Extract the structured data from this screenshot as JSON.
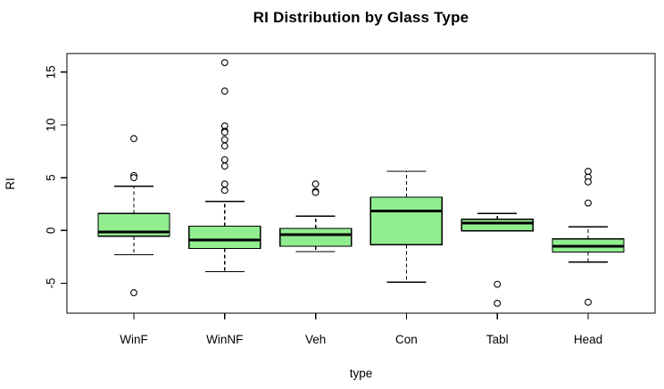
{
  "title": "RI Distribution by Glass Type",
  "chart_data": {
    "type": "boxplot",
    "title": "RI Distribution by Glass Type",
    "xlabel": "type",
    "ylabel": "RI",
    "categories": [
      "WinF",
      "WinNF",
      "Veh",
      "Con",
      "Tabl",
      "Head"
    ],
    "y_ticks": [
      -5,
      0,
      5,
      10,
      15
    ],
    "ylim": [
      -7.8,
      16.8
    ],
    "grid": false,
    "colors": {
      "box_fill": "#90EE90",
      "box_stroke": "#000000",
      "background": "#FFFFFF"
    },
    "series": [
      {
        "category": "WinF",
        "q1": -0.55,
        "median": -0.15,
        "q3": 1.6,
        "whisker_low": -2.3,
        "whisker_high": 4.2,
        "outliers": [
          8.7,
          5.2,
          5.0,
          -5.9
        ]
      },
      {
        "category": "WinNF",
        "q1": -1.7,
        "median": -0.9,
        "q3": 0.4,
        "whisker_low": -3.9,
        "whisker_high": 2.75,
        "outliers": [
          15.9,
          13.2,
          9.9,
          9.4,
          9.3,
          8.6,
          8.0,
          6.7,
          6.1,
          4.4,
          3.8
        ]
      },
      {
        "category": "Veh",
        "q1": -1.5,
        "median": -0.4,
        "q3": 0.2,
        "whisker_low": -2.0,
        "whisker_high": 1.35,
        "outliers": [
          4.4,
          3.7,
          3.6
        ]
      },
      {
        "category": "Con",
        "q1": -1.35,
        "median": 1.85,
        "q3": 3.15,
        "whisker_low": -4.9,
        "whisker_high": 5.6,
        "outliers": []
      },
      {
        "category": "Tabl",
        "q1": -0.05,
        "median": 0.7,
        "q3": 1.05,
        "whisker_low": -0.05,
        "whisker_high": 1.6,
        "outliers": [
          -5.1,
          -6.9
        ]
      },
      {
        "category": "Head",
        "q1": -2.05,
        "median": -1.5,
        "q3": -0.8,
        "whisker_low": -3.0,
        "whisker_high": 0.35,
        "outliers": [
          5.6,
          5.05,
          4.6,
          2.6,
          -6.8
        ]
      }
    ]
  }
}
